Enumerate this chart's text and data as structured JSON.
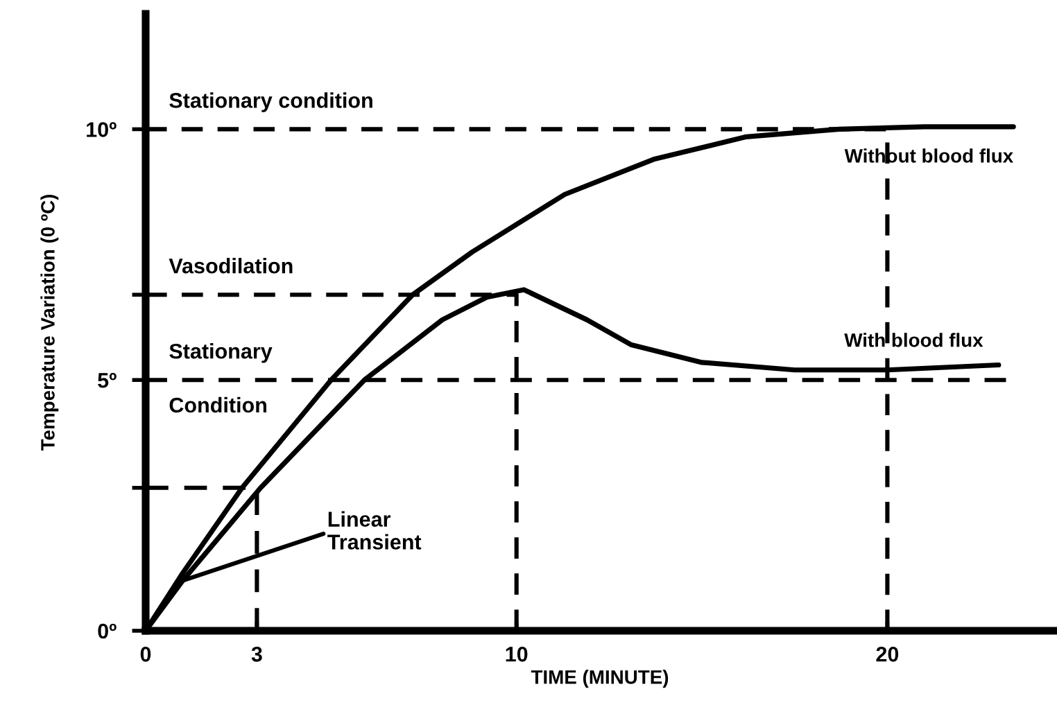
{
  "chart_data": {
    "type": "line",
    "xlabel": "TIME (MINUTE)",
    "ylabel": "Temperature Variation (0 ºC)",
    "xlim": [
      0,
      24.5
    ],
    "ylim": [
      0,
      12.3
    ],
    "xticks": [
      0,
      3,
      10,
      20
    ],
    "yticks": [
      {
        "value": 0,
        "label": "0º"
      },
      {
        "value": 2.85,
        "label": null
      },
      {
        "value": 5,
        "label": "5º"
      },
      {
        "value": 6.7,
        "label": null
      },
      {
        "value": 10,
        "label": "10º"
      }
    ],
    "grid": false,
    "legend": false,
    "marker": "none",
    "series": [
      {
        "name": "Without blood flux",
        "color": "#000000",
        "line_style": "solid",
        "x": [
          0,
          1,
          2.6,
          5.0,
          7.2,
          8.8,
          11.3,
          13.7,
          16.2,
          18.7,
          21,
          23.4
        ],
        "values": [
          0,
          1.15,
          2.85,
          5.0,
          6.7,
          7.55,
          8.7,
          9.4,
          9.85,
          10.0,
          10.05,
          10.05
        ]
      },
      {
        "name": "With blood flux",
        "color": "#000000",
        "line_style": "solid",
        "x": [
          0,
          1,
          3.1,
          5.9,
          8.0,
          9.2,
          10.2,
          11.9,
          13.1,
          15.0,
          17.5,
          20.0,
          23.0
        ],
        "values": [
          0,
          1.0,
          2.85,
          5.0,
          6.2,
          6.65,
          6.8,
          6.2,
          5.7,
          5.35,
          5.2,
          5.2,
          5.3
        ]
      },
      {
        "color": "#000000",
        "line_style": "dashed",
        "x": [
          0,
          3,
          3
        ],
        "values": [
          2.85,
          2.85,
          0
        ]
      },
      {
        "name": "Vasodilation",
        "color": "#000000",
        "line_style": "dashed",
        "x": [
          0,
          10,
          10
        ],
        "values": [
          6.7,
          6.7,
          0
        ]
      },
      {
        "name": "Stationary\nCondition",
        "color": "#000000",
        "line_style": "dashed",
        "x": [
          0,
          23.2
        ],
        "values": [
          5,
          5
        ]
      },
      {
        "name": "Stationary condition",
        "color": "#000000",
        "line_style": "dashed",
        "x": [
          0,
          20,
          20
        ],
        "values": [
          10,
          10,
          0
        ]
      }
    ],
    "annotations": [
      {
        "text": "Linear\nTransient",
        "x": 1,
        "y": 1.0
      }
    ]
  }
}
